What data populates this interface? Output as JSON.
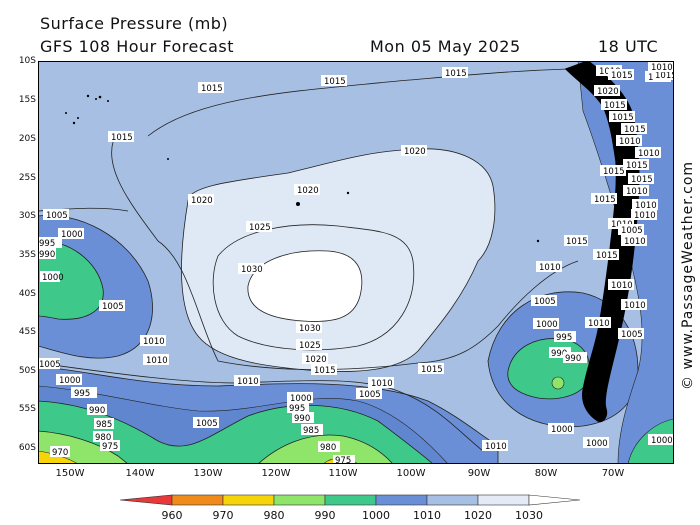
{
  "header": {
    "title": "Surface Pressure (mb)",
    "subtitle": "GFS 108 Hour Forecast",
    "datetime": "Mon 05 May 2025",
    "hour": "18 UTC"
  },
  "credit": "© www.PassageWeather.com",
  "axes": {
    "lat_labels": [
      "10S",
      "15S",
      "20S",
      "25S",
      "30S",
      "35S",
      "40S",
      "45S",
      "50S",
      "55S",
      "60S"
    ],
    "lon_labels": [
      "150W",
      "140W",
      "130W",
      "120W",
      "110W",
      "100W",
      "90W",
      "80W",
      "70W"
    ]
  },
  "legend": {
    "labels": [
      "960",
      "970",
      "980",
      "990",
      "1000",
      "1010",
      "1020",
      "1030"
    ],
    "colors": [
      "#e8393a",
      "#f08a1a",
      "#f5d50a",
      "#8fe46a",
      "#3ec98a",
      "#6a8fd6",
      "#a6bfe2",
      "#e4ebf6"
    ]
  },
  "colors": {
    "ocean_base": "#a6bfe2",
    "high": "#dfe8f5",
    "high_core": "#ffffff",
    "low_blue": "#6a8fd6",
    "low_teal": "#3ec98a",
    "low_green": "#8fe46a",
    "land": "#000000"
  },
  "isobars": [
    {
      "id": "i1",
      "text": "1015"
    },
    {
      "id": "i2",
      "text": "1015"
    },
    {
      "id": "i3",
      "text": "1015"
    },
    {
      "id": "i4",
      "text": "1015"
    },
    {
      "id": "i5",
      "text": "1020"
    },
    {
      "id": "i6",
      "text": "1020"
    },
    {
      "id": "i7",
      "text": "1020"
    },
    {
      "id": "i8",
      "text": "1025"
    },
    {
      "id": "i9",
      "text": "1030"
    },
    {
      "id": "i10",
      "text": "1030"
    },
    {
      "id": "i11",
      "text": "1025"
    },
    {
      "id": "i12",
      "text": "1020"
    },
    {
      "id": "i13",
      "text": "1015"
    },
    {
      "id": "i14",
      "text": "1015"
    },
    {
      "id": "i15",
      "text": "1010"
    },
    {
      "id": "i16",
      "text": "1005"
    },
    {
      "id": "i17",
      "text": "1000"
    },
    {
      "id": "i18",
      "text": "995"
    },
    {
      "id": "i19",
      "text": "990"
    },
    {
      "id": "i20",
      "text": "1000"
    },
    {
      "id": "i21",
      "text": "1005"
    },
    {
      "id": "i22",
      "text": "1010"
    },
    {
      "id": "i23",
      "text": "1010"
    },
    {
      "id": "i24",
      "text": "1005"
    },
    {
      "id": "i25",
      "text": "1000"
    },
    {
      "id": "i26",
      "text": "995"
    },
    {
      "id": "i27",
      "text": "990"
    },
    {
      "id": "i28",
      "text": "985"
    },
    {
      "id": "i29",
      "text": "980"
    },
    {
      "id": "i30",
      "text": "975"
    },
    {
      "id": "i31",
      "text": "970"
    },
    {
      "id": "i32",
      "text": "1010"
    },
    {
      "id": "i33",
      "text": "1010"
    },
    {
      "id": "i34",
      "text": "1005"
    },
    {
      "id": "i35",
      "text": "1005"
    },
    {
      "id": "i36",
      "text": "1000"
    },
    {
      "id": "i37",
      "text": "995"
    },
    {
      "id": "i38",
      "text": "990"
    },
    {
      "id": "i39",
      "text": "985"
    },
    {
      "id": "i40",
      "text": "980"
    },
    {
      "id": "i41",
      "text": "975"
    },
    {
      "id": "i42",
      "text": "1010"
    },
    {
      "id": "i43",
      "text": "1015"
    },
    {
      "id": "i44",
      "text": "1005"
    },
    {
      "id": "i45",
      "text": "1000"
    },
    {
      "id": "i46",
      "text": "995"
    },
    {
      "id": "i47",
      "text": "990"
    },
    {
      "id": "i48",
      "text": "1000"
    },
    {
      "id": "i49",
      "text": "1000"
    },
    {
      "id": "i50",
      "text": "1000"
    },
    {
      "id": "i51",
      "text": "1005"
    },
    {
      "id": "i52",
      "text": "1010"
    },
    {
      "id": "i53",
      "text": "1010"
    },
    {
      "id": "i54",
      "text": "1010"
    },
    {
      "id": "i55",
      "text": "1015"
    },
    {
      "id": "i56",
      "text": "1015"
    },
    {
      "id": "i57",
      "text": "1015"
    },
    {
      "id": "i58",
      "text": "1010"
    },
    {
      "id": "i59",
      "text": "1015"
    },
    {
      "id": "i60",
      "text": "1015"
    },
    {
      "id": "i61",
      "text": "1020"
    },
    {
      "id": "i62",
      "text": "1015"
    },
    {
      "id": "i63",
      "text": "1015"
    },
    {
      "id": "i64",
      "text": "1010"
    },
    {
      "id": "i65",
      "text": "1010"
    },
    {
      "id": "i66",
      "text": "1015"
    },
    {
      "id": "i67",
      "text": "1015"
    },
    {
      "id": "i68",
      "text": "1010"
    },
    {
      "id": "i69",
      "text": "1010"
    },
    {
      "id": "i70",
      "text": "1005"
    },
    {
      "id": "i71",
      "text": "1010"
    },
    {
      "id": "i72",
      "text": "1010"
    },
    {
      "id": "i73",
      "text": "990"
    },
    {
      "id": "i74",
      "text": "1015"
    },
    {
      "id": "i75",
      "text": "1010"
    },
    {
      "id": "i76",
      "text": "1010"
    },
    {
      "id": "i77",
      "text": "1005"
    }
  ]
}
